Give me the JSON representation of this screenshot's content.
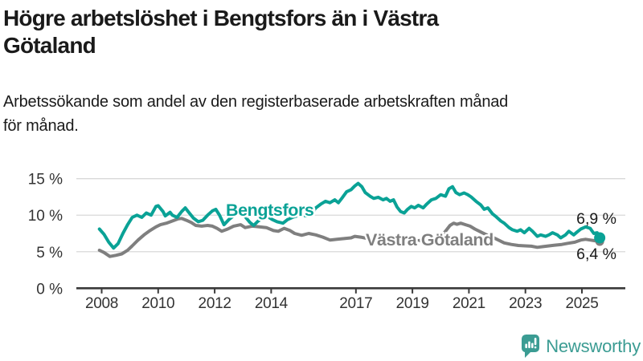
{
  "title": {
    "lines": [
      "Högre arbetslöshet i Bengtsfors än i Västra",
      "Götaland"
    ],
    "full": "Högre arbetslöshet i Bengtsfors än i Västra Götaland"
  },
  "subtitle": {
    "lines": [
      "Arbetssökande som andel av den registerbaserade arbetskraften månad",
      "för månad."
    ],
    "full": "Arbetssökande som andel av den registerbaserade arbetskraften månad för månad."
  },
  "branding": {
    "name": "Newsworthy",
    "icon": "newsworthy-speech-bubble-bar-chart-icon",
    "color": "#3b9c93"
  },
  "chart_data": {
    "type": "line",
    "title": "",
    "xlabel": "",
    "ylabel": "",
    "x_unit": "year (decimal; monthly series)",
    "y_unit": "percent of registered labour force",
    "ylim": [
      0,
      15
    ],
    "xlim": [
      2007.9,
      2025.65
    ],
    "grid": true,
    "yticks": [
      0,
      5,
      10,
      15
    ],
    "ytick_labels": [
      "0 %",
      "5 %",
      "10 %",
      "15 %"
    ],
    "xticks": [
      2008,
      2010,
      2012,
      2014,
      2017,
      2019,
      2021,
      2023,
      2025
    ],
    "xtick_labels": [
      "2008",
      "2010",
      "2012",
      "2014",
      "2017",
      "2019",
      "2021",
      "2023",
      "2025"
    ],
    "legend_position": "inline-labels-on-lines",
    "axis_color": "#3a3a3a",
    "grid_color": "#d9d9d9",
    "tick_label_color": "#333333",
    "end_label_color": "#1a1a1a",
    "series": [
      {
        "name": "Bengtsfors",
        "color": "#0aa296",
        "end_label": "6,9 %",
        "last_value": 6.9,
        "points": [
          [
            2007.92,
            8.1
          ],
          [
            2008.08,
            7.4
          ],
          [
            2008.25,
            6.3
          ],
          [
            2008.42,
            5.5
          ],
          [
            2008.58,
            6.1
          ],
          [
            2008.75,
            7.5
          ],
          [
            2008.92,
            8.7
          ],
          [
            2009.08,
            9.7
          ],
          [
            2009.25,
            10.0
          ],
          [
            2009.42,
            9.7
          ],
          [
            2009.58,
            10.3
          ],
          [
            2009.75,
            10.0
          ],
          [
            2009.92,
            11.2
          ],
          [
            2010.0,
            11.3
          ],
          [
            2010.17,
            10.5
          ],
          [
            2010.25,
            9.9
          ],
          [
            2010.42,
            10.4
          ],
          [
            2010.5,
            10.0
          ],
          [
            2010.67,
            9.7
          ],
          [
            2010.83,
            10.5
          ],
          [
            2010.96,
            11.0
          ],
          [
            2011.08,
            10.4
          ],
          [
            2011.25,
            9.6
          ],
          [
            2011.42,
            9.1
          ],
          [
            2011.58,
            9.3
          ],
          [
            2011.75,
            10.0
          ],
          [
            2011.92,
            10.6
          ],
          [
            2012.04,
            10.8
          ],
          [
            2012.17,
            10.0
          ],
          [
            2012.33,
            8.7
          ],
          [
            2012.5,
            9.4
          ],
          [
            2012.67,
            9.9
          ],
          [
            2012.83,
            10.2
          ],
          [
            2012.96,
            10.4
          ],
          [
            2013.08,
            9.8
          ],
          [
            2013.25,
            9.0
          ],
          [
            2013.38,
            8.6
          ],
          [
            2013.54,
            9.2
          ],
          [
            2013.71,
            9.6
          ],
          [
            2013.88,
            9.8
          ],
          [
            2014.04,
            9.4
          ],
          [
            2014.21,
            9.1
          ],
          [
            2014.42,
            8.9
          ],
          [
            2014.58,
            9.4
          ],
          [
            2014.75,
            9.7
          ],
          [
            2014.92,
            9.9
          ],
          [
            2015.08,
            10.0
          ],
          [
            2015.25,
            9.9
          ],
          [
            2015.42,
            10.2
          ],
          [
            2015.58,
            11.0
          ],
          [
            2015.75,
            11.5
          ],
          [
            2015.92,
            11.9
          ],
          [
            2016.08,
            11.7
          ],
          [
            2016.25,
            12.1
          ],
          [
            2016.38,
            11.7
          ],
          [
            2016.5,
            12.3
          ],
          [
            2016.67,
            13.2
          ],
          [
            2016.83,
            13.5
          ],
          [
            2016.96,
            14.0
          ],
          [
            2017.08,
            14.35
          ],
          [
            2017.21,
            13.9
          ],
          [
            2017.33,
            13.1
          ],
          [
            2017.5,
            12.6
          ],
          [
            2017.63,
            12.3
          ],
          [
            2017.79,
            12.45
          ],
          [
            2017.96,
            12.1
          ],
          [
            2018.08,
            12.3
          ],
          [
            2018.21,
            11.9
          ],
          [
            2018.33,
            12.1
          ],
          [
            2018.46,
            11.1
          ],
          [
            2018.58,
            10.5
          ],
          [
            2018.71,
            10.3
          ],
          [
            2018.83,
            10.8
          ],
          [
            2018.96,
            11.2
          ],
          [
            2019.08,
            11.0
          ],
          [
            2019.21,
            11.35
          ],
          [
            2019.38,
            11.0
          ],
          [
            2019.5,
            11.5
          ],
          [
            2019.67,
            12.1
          ],
          [
            2019.83,
            12.3
          ],
          [
            2020.0,
            12.8
          ],
          [
            2020.17,
            12.6
          ],
          [
            2020.29,
            13.6
          ],
          [
            2020.42,
            13.9
          ],
          [
            2020.54,
            13.1
          ],
          [
            2020.67,
            12.8
          ],
          [
            2020.83,
            13.05
          ],
          [
            2020.96,
            12.8
          ],
          [
            2021.08,
            12.5
          ],
          [
            2021.25,
            11.9
          ],
          [
            2021.42,
            11.4
          ],
          [
            2021.54,
            10.8
          ],
          [
            2021.67,
            11.0
          ],
          [
            2021.83,
            10.2
          ],
          [
            2021.96,
            9.8
          ],
          [
            2022.13,
            9.2
          ],
          [
            2022.25,
            8.9
          ],
          [
            2022.42,
            8.3
          ],
          [
            2022.54,
            8.0
          ],
          [
            2022.71,
            7.8
          ],
          [
            2022.83,
            8.0
          ],
          [
            2022.96,
            7.6
          ],
          [
            2023.13,
            8.2
          ],
          [
            2023.25,
            7.8
          ],
          [
            2023.42,
            7.1
          ],
          [
            2023.54,
            7.3
          ],
          [
            2023.71,
            7.1
          ],
          [
            2023.83,
            7.3
          ],
          [
            2023.96,
            7.6
          ],
          [
            2024.13,
            7.3
          ],
          [
            2024.25,
            6.9
          ],
          [
            2024.42,
            7.3
          ],
          [
            2024.54,
            7.8
          ],
          [
            2024.71,
            7.3
          ],
          [
            2024.83,
            7.7
          ],
          [
            2024.96,
            8.1
          ],
          [
            2025.13,
            8.4
          ],
          [
            2025.29,
            8.2
          ],
          [
            2025.42,
            7.5
          ],
          [
            2025.54,
            7.6
          ],
          [
            2025.63,
            6.9
          ]
        ]
      },
      {
        "name": "Västra Götaland",
        "color": "#7f7f7f",
        "end_label": "6,4 %",
        "last_value": 6.4,
        "points": [
          [
            2007.92,
            5.2
          ],
          [
            2008.08,
            4.9
          ],
          [
            2008.29,
            4.35
          ],
          [
            2008.5,
            4.5
          ],
          [
            2008.71,
            4.7
          ],
          [
            2008.92,
            5.2
          ],
          [
            2009.08,
            5.8
          ],
          [
            2009.29,
            6.6
          ],
          [
            2009.5,
            7.3
          ],
          [
            2009.71,
            7.9
          ],
          [
            2009.92,
            8.4
          ],
          [
            2010.08,
            8.7
          ],
          [
            2010.29,
            8.9
          ],
          [
            2010.5,
            9.2
          ],
          [
            2010.71,
            9.5
          ],
          [
            2010.83,
            9.55
          ],
          [
            2011.0,
            9.3
          ],
          [
            2011.17,
            9.0
          ],
          [
            2011.33,
            8.6
          ],
          [
            2011.54,
            8.5
          ],
          [
            2011.75,
            8.6
          ],
          [
            2011.92,
            8.5
          ],
          [
            2012.08,
            8.2
          ],
          [
            2012.25,
            7.8
          ],
          [
            2012.46,
            8.1
          ],
          [
            2012.67,
            8.5
          ],
          [
            2012.92,
            8.7
          ],
          [
            2013.08,
            8.3
          ],
          [
            2013.33,
            8.5
          ],
          [
            2013.58,
            8.4
          ],
          [
            2013.83,
            8.3
          ],
          [
            2014.08,
            7.9
          ],
          [
            2014.25,
            7.8
          ],
          [
            2014.46,
            8.2
          ],
          [
            2014.67,
            7.9
          ],
          [
            2014.83,
            7.5
          ],
          [
            2015.08,
            7.25
          ],
          [
            2015.33,
            7.5
          ],
          [
            2015.58,
            7.3
          ],
          [
            2015.83,
            7.0
          ],
          [
            2016.08,
            6.6
          ],
          [
            2016.33,
            6.7
          ],
          [
            2016.58,
            6.8
          ],
          [
            2016.83,
            6.9
          ],
          [
            2016.96,
            7.1
          ],
          [
            2017.17,
            7.0
          ],
          [
            2017.42,
            6.8
          ],
          [
            2017.67,
            6.7
          ],
          [
            2017.92,
            6.6
          ],
          [
            2018.17,
            6.4
          ],
          [
            2018.42,
            6.3
          ],
          [
            2018.67,
            6.35
          ],
          [
            2018.92,
            6.4
          ],
          [
            2019.17,
            6.5
          ],
          [
            2019.42,
            6.6
          ],
          [
            2019.67,
            6.7
          ],
          [
            2019.92,
            6.9
          ],
          [
            2020.13,
            7.6
          ],
          [
            2020.33,
            8.6
          ],
          [
            2020.46,
            8.9
          ],
          [
            2020.58,
            8.75
          ],
          [
            2020.71,
            8.9
          ],
          [
            2020.88,
            8.7
          ],
          [
            2021.04,
            8.5
          ],
          [
            2021.21,
            8.1
          ],
          [
            2021.42,
            7.7
          ],
          [
            2021.63,
            7.3
          ],
          [
            2021.83,
            7.0
          ],
          [
            2022.04,
            6.6
          ],
          [
            2022.25,
            6.2
          ],
          [
            2022.5,
            6.0
          ],
          [
            2022.75,
            5.85
          ],
          [
            2023.0,
            5.8
          ],
          [
            2023.21,
            5.75
          ],
          [
            2023.42,
            5.6
          ],
          [
            2023.63,
            5.7
          ],
          [
            2023.83,
            5.8
          ],
          [
            2024.04,
            5.9
          ],
          [
            2024.29,
            6.0
          ],
          [
            2024.5,
            6.15
          ],
          [
            2024.75,
            6.3
          ],
          [
            2024.96,
            6.6
          ],
          [
            2025.13,
            6.7
          ],
          [
            2025.29,
            6.6
          ],
          [
            2025.46,
            6.5
          ],
          [
            2025.63,
            6.4
          ]
        ]
      }
    ]
  }
}
